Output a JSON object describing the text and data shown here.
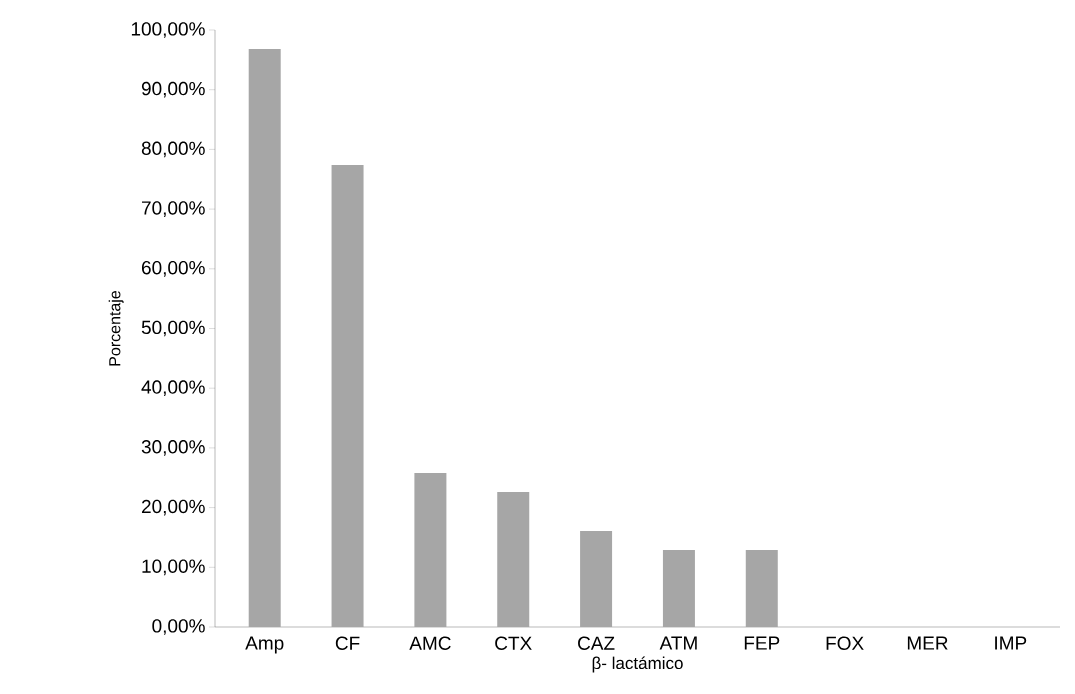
{
  "chart_data": {
    "type": "bar",
    "xlabel": "β- lactámico",
    "ylabel": "Porcentaje",
    "categories": [
      "Amp",
      "CF",
      "AMC",
      "CTX",
      "CAZ",
      "ATM",
      "FEP",
      "FOX",
      "MER",
      "IMP"
    ],
    "values": [
      96.8,
      77.4,
      25.8,
      22.6,
      16.1,
      12.9,
      12.9,
      0,
      0,
      0
    ],
    "color": "#a6a6a6",
    "ylim": [
      0,
      100
    ],
    "yticks": [
      {
        "value": 0,
        "label": "0,00%"
      },
      {
        "value": 10,
        "label": "10,00%"
      },
      {
        "value": 20,
        "label": "20,00%"
      },
      {
        "value": 30,
        "label": "30,00%"
      },
      {
        "value": 40,
        "label": "40,00%"
      },
      {
        "value": 50,
        "label": "50,00%"
      },
      {
        "value": 60,
        "label": "60,00%"
      },
      {
        "value": 70,
        "label": "70,00%"
      },
      {
        "value": 80,
        "label": "80,00%"
      },
      {
        "value": 90,
        "label": "90,00%"
      },
      {
        "value": 100,
        "label": "100,00%"
      }
    ]
  }
}
